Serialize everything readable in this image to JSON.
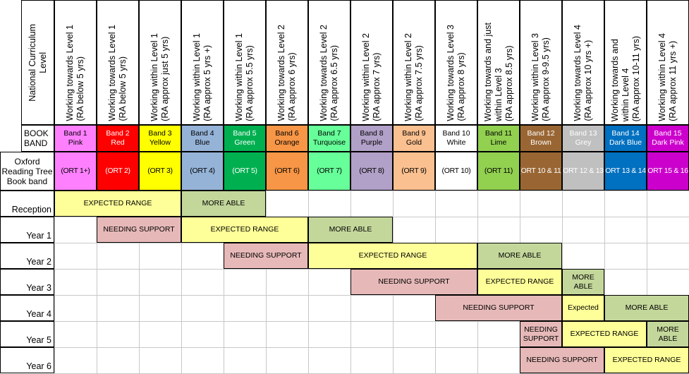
{
  "header": {
    "nc_label": "National Curriculum\nLevel",
    "book_band_label": "BOOK\nBAND",
    "ort_label": "Oxford\nReading Tree\nBook band"
  },
  "columns": [
    {
      "level": "Working towards Level 1\n(RA below 5 yrs)",
      "band": "Band 1\nPink",
      "ort": "(ORT 1+)",
      "color": "#ff80ff"
    },
    {
      "level": "Working towards Level 1\n(RA below 5 yrs)",
      "band": "Band 2\nRed",
      "ort": "(ORT 2)",
      "color": "#ff0000"
    },
    {
      "level": "Working within Level 1\n(RA approx just 5 yrs)",
      "band": "Band 3\nYellow",
      "ort": "(ORT 3)",
      "color": "#ffff00"
    },
    {
      "level": "Working within Level 1\n(RA approx 5 yrs +)",
      "band": "Band 4\nBlue",
      "ort": "(ORT 4)",
      "color": "#95b3d7"
    },
    {
      "level": "Working within Level 1\n(RA approx 5.5 yrs)",
      "band": "Band 5\nGreen",
      "ort": "(ORT 5)",
      "color": "#00b050"
    },
    {
      "level": "Working towards Level 2\n(RA approx 6 yrs)",
      "band": "Band 6\nOrange",
      "ort": "(ORT 6)",
      "color": "#f79646"
    },
    {
      "level": "Working towards Level 2\n(RA approx 6.5 yrs)",
      "band": "Band 7\nTurquoise",
      "ort": "(ORT 7)",
      "color": "#66ff99"
    },
    {
      "level": "Working within Level 2\n(RA approx 7 yrs)",
      "band": "Band 8\nPurple",
      "ort": "(ORT 8)",
      "color": "#b1a0c7"
    },
    {
      "level": "Working within Level 2\n(RA approx 7.5 yrs)",
      "band": "Band 9\nGold",
      "ort": "(ORT 9)",
      "color": "#fac090"
    },
    {
      "level": "Working towards Level 3\n(RA approx 8 yrs)",
      "band": "Band 10\nWhite",
      "ort": "(ORT 10)",
      "color": "#ffffff"
    },
    {
      "level": "Working towards and just\nwithin Level 3\n(RA approx 8.5 yrs)",
      "band": "Band 11\nLime",
      "ort": "(ORT 11)",
      "color": "#92d050"
    },
    {
      "level": "Working within Level 3\n(RA approx 9-9.5 yrs)",
      "band": "Band 12\nBrown",
      "ort": "(ORT 10 & 11)",
      "color": "#996633"
    },
    {
      "level": "Working towards Level 4\n(RA approx 10 yrs +)",
      "band": "Band 13\nGrey",
      "ort": "(ORT 12 & 13)",
      "color": "#c0c0c0"
    },
    {
      "level": "Working towards and\nwithin Level 4\n(RA approx 10-11 yrs)",
      "band": "Band 14\nDark Blue",
      "ort": "(ORT 13 & 14)",
      "color": "#0070c0"
    },
    {
      "level": "Working within Level 4\n(RA approx 11 yrs +)",
      "band": "Band 15\nDark Pink",
      "ort": "(ORT 15 & 16)",
      "color": "#cc00cc"
    }
  ],
  "rows": [
    {
      "label": "Reception",
      "spans": [
        {
          "start": 0,
          "end": 3,
          "text": "EXPECTED RANGE",
          "kind": "expected"
        },
        {
          "start": 3,
          "end": 5,
          "text": "MORE ABLE",
          "kind": "more"
        }
      ]
    },
    {
      "label": "Year 1",
      "spans": [
        {
          "start": 1,
          "end": 3,
          "text": "NEEDING SUPPORT",
          "kind": "support"
        },
        {
          "start": 3,
          "end": 6,
          "text": "EXPECTED RANGE",
          "kind": "expected"
        },
        {
          "start": 6,
          "end": 8,
          "text": "MORE ABLE",
          "kind": "more"
        }
      ]
    },
    {
      "label": "Year 2",
      "spans": [
        {
          "start": 4,
          "end": 6,
          "text": "NEEDING SUPPORT",
          "kind": "support"
        },
        {
          "start": 6,
          "end": 10,
          "text": "EXPECTED RANGE",
          "kind": "expected"
        },
        {
          "start": 10,
          "end": 12,
          "text": "MORE ABLE",
          "kind": "more"
        }
      ]
    },
    {
      "label": "Year 3",
      "spans": [
        {
          "start": 7,
          "end": 10,
          "text": "NEEDING SUPPORT",
          "kind": "support"
        },
        {
          "start": 10,
          "end": 12,
          "text": "EXPECTED RANGE",
          "kind": "expected"
        },
        {
          "start": 12,
          "end": 13,
          "text": "MORE\nABLE",
          "kind": "more"
        }
      ]
    },
    {
      "label": "Year 4",
      "spans": [
        {
          "start": 9,
          "end": 12,
          "text": "NEEDING SUPPORT",
          "kind": "support"
        },
        {
          "start": 12,
          "end": 13,
          "text": "Expected",
          "kind": "expected"
        },
        {
          "start": 13,
          "end": 15,
          "text": "MORE ABLE",
          "kind": "more"
        }
      ]
    },
    {
      "label": "Year 5",
      "spans": [
        {
          "start": 11,
          "end": 12,
          "text": "NEEDING\nSUPPORT",
          "kind": "support"
        },
        {
          "start": 12,
          "end": 14,
          "text": "EXPECTED RANGE",
          "kind": "expected"
        },
        {
          "start": 14,
          "end": 15,
          "text": "MORE\nABLE",
          "kind": "more"
        }
      ]
    },
    {
      "label": "Year 6",
      "spans": [
        {
          "start": 11,
          "end": 13,
          "text": "NEEDING SUPPORT",
          "kind": "support"
        },
        {
          "start": 13,
          "end": 15,
          "text": "EXPECTED RANGE",
          "kind": "expected"
        }
      ]
    }
  ],
  "palette": {
    "expected": "#ffff99",
    "support": "#e6b9b8",
    "more": "#c4d79b",
    "grid": "#c8c8c8",
    "border": "#000000"
  },
  "dark_text_bands": [
    "#ff0000",
    "#00b050",
    "#996633",
    "#c0c0c0",
    "#0070c0",
    "#cc00cc"
  ]
}
